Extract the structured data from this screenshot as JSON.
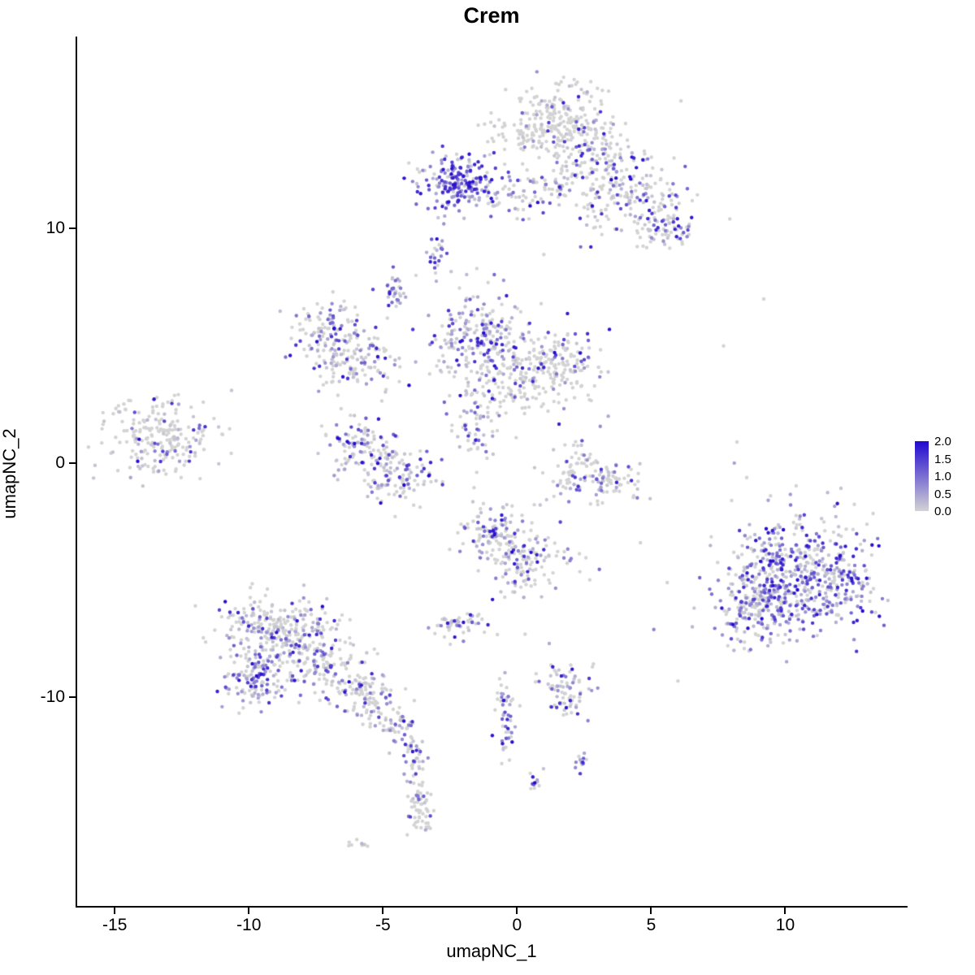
{
  "page": {
    "background": "#ffffff"
  },
  "chart_data": {
    "type": "scatter",
    "title": "Crem",
    "xlabel": "umapNC_1",
    "ylabel": "umapNC_2",
    "xlim": [
      -16.4,
      14.5
    ],
    "ylim": [
      -18.9,
      18.2
    ],
    "x_ticks": [
      "-15",
      "-10",
      "-5",
      "0",
      "5",
      "10"
    ],
    "x_tick_values": [
      -15,
      -10,
      -5,
      0,
      5,
      10
    ],
    "y_ticks": [
      "10",
      "0",
      "-10"
    ],
    "y_tick_values": [
      10,
      0,
      -10
    ],
    "grid": false,
    "legend_position": "right",
    "legend": {
      "ticks": [
        "2.0",
        "1.5",
        "1.0",
        "0.5",
        "0.0"
      ],
      "vmin": 0.0,
      "vmax": 2.0
    },
    "colors": {
      "low": "#d3d3d3",
      "high": "#2209cf",
      "axis": "#000000"
    },
    "point_radius": 2.2,
    "seed": 42,
    "clusters": [
      {
        "n": 260,
        "cx": 1.4,
        "cy": 14.6,
        "sx": 1.1,
        "sy": 0.8,
        "frac": 0.18
      },
      {
        "n": 90,
        "cx": 2.9,
        "cy": 13.4,
        "sx": 0.7,
        "sy": 0.7,
        "frac": 0.35
      },
      {
        "n": 80,
        "cx": 2.3,
        "cy": 12.4,
        "sx": 1.2,
        "sy": 0.6,
        "frac": 0.3
      },
      {
        "n": 150,
        "cx": 4.2,
        "cy": 11.2,
        "sx": 1.1,
        "sy": 0.9,
        "frac": 0.35
      },
      {
        "n": 70,
        "cx": 5.6,
        "cy": 10.1,
        "sx": 0.5,
        "sy": 0.5,
        "frac": 0.55
      },
      {
        "n": 70,
        "cx": 0.6,
        "cy": 11.6,
        "sx": 1.1,
        "sy": 0.6,
        "frac": 0.45
      },
      {
        "n": 210,
        "cx": -2.2,
        "cy": 11.9,
        "sx": 0.9,
        "sy": 0.55,
        "frac": 0.85,
        "vpow": 1.0
      },
      {
        "n": 22,
        "cx": -3.0,
        "cy": 8.9,
        "sx": 0.15,
        "sy": 0.4,
        "frac": 0.85,
        "vpow": 1.0
      },
      {
        "n": 32,
        "cx": -4.6,
        "cy": 7.4,
        "sx": 0.22,
        "sy": 0.5,
        "frac": 0.8,
        "vpow": 1.1
      },
      {
        "n": 110,
        "cx": -7.2,
        "cy": 5.6,
        "sx": 0.7,
        "sy": 0.6,
        "frac": 0.5
      },
      {
        "n": 120,
        "cx": -6.0,
        "cy": 4.4,
        "sx": 0.8,
        "sy": 0.7,
        "frac": 0.45
      },
      {
        "n": 250,
        "cx": -1.3,
        "cy": 5.2,
        "sx": 0.85,
        "sy": 1.0,
        "frac": 0.55
      },
      {
        "n": 190,
        "cx": 1.4,
        "cy": 4.1,
        "sx": 0.85,
        "sy": 0.75,
        "frac": 0.2
      },
      {
        "n": 60,
        "cx": -0.2,
        "cy": 3.0,
        "sx": 0.9,
        "sy": 0.6,
        "frac": 0.3
      },
      {
        "n": 60,
        "cx": -1.6,
        "cy": 1.6,
        "sx": 0.5,
        "sy": 0.9,
        "frac": 0.45
      },
      {
        "n": 90,
        "cx": -5.9,
        "cy": 0.7,
        "sx": 0.6,
        "sy": 0.55,
        "frac": 0.5
      },
      {
        "n": 130,
        "cx": -4.4,
        "cy": -0.4,
        "sx": 0.8,
        "sy": 0.6,
        "frac": 0.55
      },
      {
        "n": 220,
        "cx": -13.3,
        "cy": 1.0,
        "sx": 1.0,
        "sy": 0.85,
        "frac": 0.3,
        "vpow": 2.2
      },
      {
        "n": 45,
        "cx": 2.3,
        "cy": 0.1,
        "sx": 0.5,
        "sy": 0.55,
        "frac": 0.15
      },
      {
        "n": 95,
        "cx": 3.3,
        "cy": -0.9,
        "sx": 0.8,
        "sy": 0.45,
        "frac": 0.4
      },
      {
        "n": 110,
        "cx": -0.9,
        "cy": -2.9,
        "sx": 0.7,
        "sy": 0.6,
        "frac": 0.5
      },
      {
        "n": 130,
        "cx": 0.4,
        "cy": -4.2,
        "sx": 0.8,
        "sy": 0.7,
        "frac": 0.35
      },
      {
        "n": 55,
        "cx": -2.1,
        "cy": -6.9,
        "sx": 0.5,
        "sy": 0.35,
        "frac": 0.5
      },
      {
        "n": 150,
        "cx": -9.4,
        "cy": -6.9,
        "sx": 0.9,
        "sy": 0.7,
        "frac": 0.45
      },
      {
        "n": 140,
        "cx": -8.0,
        "cy": -7.5,
        "sx": 0.8,
        "sy": 0.7,
        "frac": 0.45
      },
      {
        "n": 150,
        "cx": -9.6,
        "cy": -9.1,
        "sx": 0.7,
        "sy": 0.6,
        "frac": 0.6,
        "vpow": 1.2
      },
      {
        "n": 100,
        "cx": -7.0,
        "cy": -8.8,
        "sx": 0.8,
        "sy": 0.6,
        "frac": 0.4
      },
      {
        "n": 85,
        "cx": -5.6,
        "cy": -9.9,
        "sx": 0.6,
        "sy": 0.5,
        "frac": 0.5
      },
      {
        "n": 55,
        "cx": -4.6,
        "cy": -11.1,
        "sx": 0.4,
        "sy": 0.5,
        "frac": 0.5
      },
      {
        "n": 45,
        "cx": -3.9,
        "cy": -12.3,
        "sx": 0.18,
        "sy": 0.8,
        "frac": 0.5,
        "vpow": 1.2
      },
      {
        "n": 40,
        "cx": -3.6,
        "cy": -14.3,
        "sx": 0.2,
        "sy": 0.6,
        "frac": 0.12
      },
      {
        "n": 22,
        "cx": -3.5,
        "cy": -15.3,
        "sx": 0.3,
        "sy": 0.25,
        "frac": 0.1
      },
      {
        "n": 8,
        "cx": -5.9,
        "cy": -16.3,
        "sx": 0.25,
        "sy": 0.12,
        "frac": 0.1
      },
      {
        "n": 50,
        "cx": -0.4,
        "cy": -10.9,
        "sx": 0.2,
        "sy": 1.0,
        "frac": 0.6,
        "vpow": 1.2
      },
      {
        "n": 14,
        "cx": 0.7,
        "cy": -13.6,
        "sx": 0.18,
        "sy": 0.3,
        "frac": 0.7,
        "vpow": 1.2
      },
      {
        "n": 80,
        "cx": 1.9,
        "cy": -9.6,
        "sx": 0.55,
        "sy": 0.55,
        "frac": 0.5
      },
      {
        "n": 12,
        "cx": 2.4,
        "cy": -12.7,
        "sx": 0.15,
        "sy": 0.25,
        "frac": 0.7,
        "vpow": 1.2
      },
      {
        "n": 430,
        "cx": 10.5,
        "cy": -4.5,
        "sx": 1.3,
        "sy": 1.2,
        "frac": 0.7,
        "vpow": 1.2
      },
      {
        "n": 230,
        "cx": 9.1,
        "cy": -6.2,
        "sx": 0.9,
        "sy": 0.8,
        "frac": 0.65,
        "vpow": 1.2
      },
      {
        "n": 90,
        "cx": 12.2,
        "cy": -5.5,
        "sx": 0.7,
        "sy": 0.8,
        "frac": 0.6,
        "vpow": 1.2
      }
    ],
    "singles": [
      [
        9.2,
        7.0,
        0
      ],
      [
        7.7,
        5.0,
        0
      ],
      [
        8.2,
        0.9,
        0
      ],
      [
        8.1,
        0.0,
        0.5
      ],
      [
        8.0,
        -1.6,
        0
      ],
      [
        5.1,
        -7.1,
        0.8
      ],
      [
        2.7,
        2.7,
        0
      ],
      [
        3.4,
        2.0,
        0.4
      ],
      [
        -11.7,
        2.6,
        0
      ],
      [
        -11.3,
        1.9,
        0
      ],
      [
        5.6,
        -5.1,
        0
      ],
      [
        6.0,
        -9.3,
        0
      ],
      [
        4.6,
        -3.4,
        0
      ],
      [
        -0.5,
        7.8,
        0.6
      ],
      [
        -1.5,
        8.3,
        0
      ],
      [
        1.0,
        8.9,
        0
      ],
      [
        -3.3,
        6.3,
        0.5
      ],
      [
        0.3,
        -7.3,
        0
      ],
      [
        1.2,
        -7.7,
        0.4
      ],
      [
        -12.0,
        0.3,
        0
      ]
    ]
  }
}
